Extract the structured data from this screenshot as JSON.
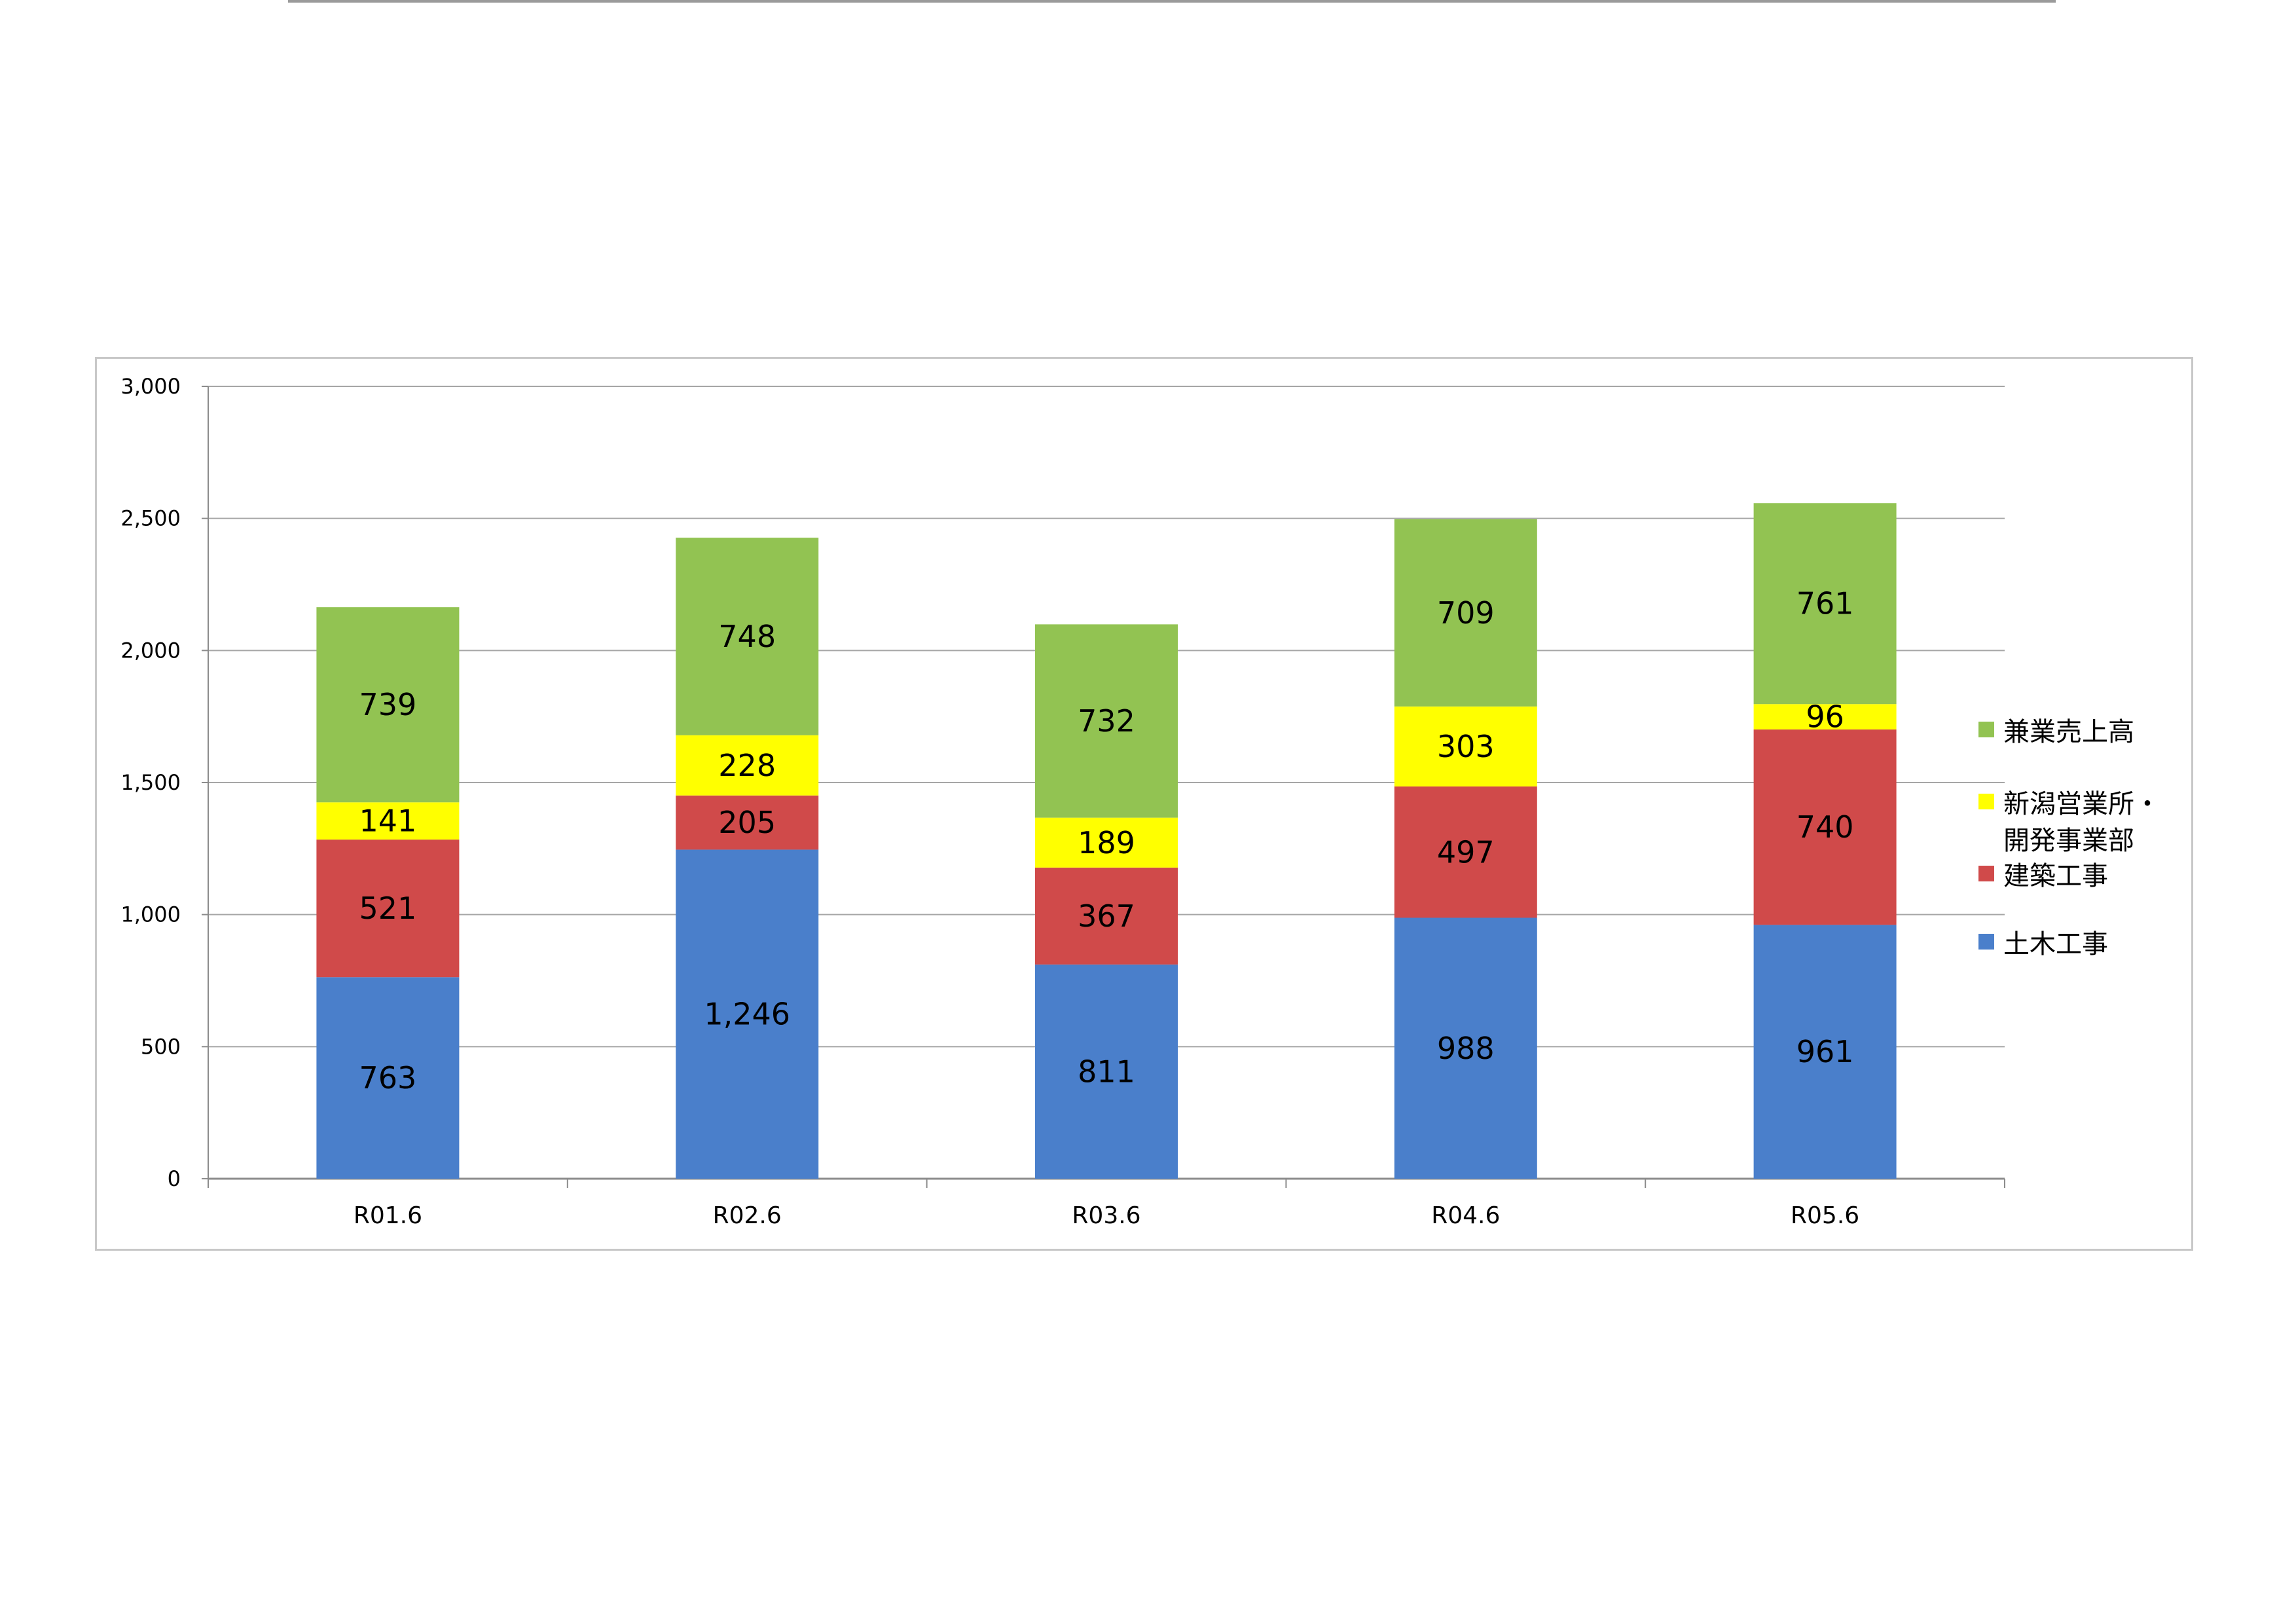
{
  "chart_data": {
    "type": "bar",
    "stacked": true,
    "categories": [
      "R01.6",
      "R02.6",
      "R03.6",
      "R04.6",
      "R05.6"
    ],
    "series": [
      {
        "name": "土木工事",
        "values": [
          763,
          1246,
          811,
          988,
          961
        ],
        "labels": [
          "763",
          "1,246",
          "811",
          "988",
          "961"
        ],
        "color": "#4a7fcb"
      },
      {
        "name": "建築工事",
        "values": [
          521,
          205,
          367,
          497,
          740
        ],
        "labels": [
          "521",
          "205",
          "367",
          "497",
          "740"
        ],
        "color": "#d04a4a"
      },
      {
        "name": "新潟営業所・\n開発事業部",
        "values": [
          141,
          228,
          189,
          303,
          96
        ],
        "labels": [
          "141",
          "228",
          "189",
          "303",
          "96"
        ],
        "color": "#ffff00"
      },
      {
        "name": "兼業売上高",
        "values": [
          739,
          748,
          732,
          709,
          761
        ],
        "labels": [
          "739",
          "748",
          "732",
          "709",
          "761"
        ],
        "color": "#92c352"
      }
    ],
    "ylim": [
      0,
      3000
    ],
    "yticks": [
      0,
      500,
      1000,
      1500,
      2000,
      2500,
      3000
    ],
    "ytick_labels": [
      "0",
      "500",
      "1,000",
      "1,500",
      "2,000",
      "2,500",
      "3,000"
    ],
    "grid": true,
    "legend_position": "right"
  }
}
